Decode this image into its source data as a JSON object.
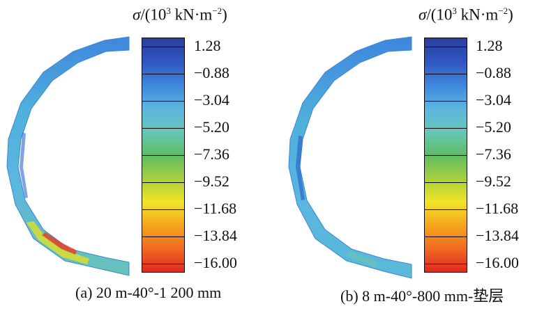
{
  "colors": {
    "scale": [
      "#2a3f9e",
      "#2f56c2",
      "#3f86dd",
      "#5bb6e0",
      "#66c6b8",
      "#5ebc63",
      "#a6cf3f",
      "#f0e528",
      "#f5a51d",
      "#ef6a23",
      "#e0281e"
    ],
    "ring_main": "#4fb0dc",
    "ring_dark": "#2f67c8",
    "ring_teal": "#67c2b7",
    "ring_yellow": "#d9df2e",
    "ring_red": "#e24224"
  },
  "panels": [
    {
      "legend_title": {
        "symbol": "σ",
        "pre": "/(10",
        "exp": "3",
        "post": " kN·m",
        "exp2": "−2",
        "tail": ")"
      },
      "ticks": [
        "1.28",
        "−0.88",
        "−3.04",
        "−5.20",
        "−7.36",
        "−9.52",
        "−11.68",
        "−13.84",
        "−16.00"
      ],
      "caption": "(a) 20 m-40°-1 200 mm"
    },
    {
      "legend_title": {
        "symbol": "σ",
        "pre": "/(10",
        "exp": "3",
        "post": " kN·m",
        "exp2": "−2",
        "tail": ")"
      },
      "ticks": [
        "1.28",
        "−0.88",
        "−3.04",
        "−5.20",
        "−7.36",
        "−9.52",
        "−11.68",
        "−13.84",
        "−16.00"
      ],
      "caption": "(b) 8 m-40°-800 mm-垫层"
    }
  ]
}
